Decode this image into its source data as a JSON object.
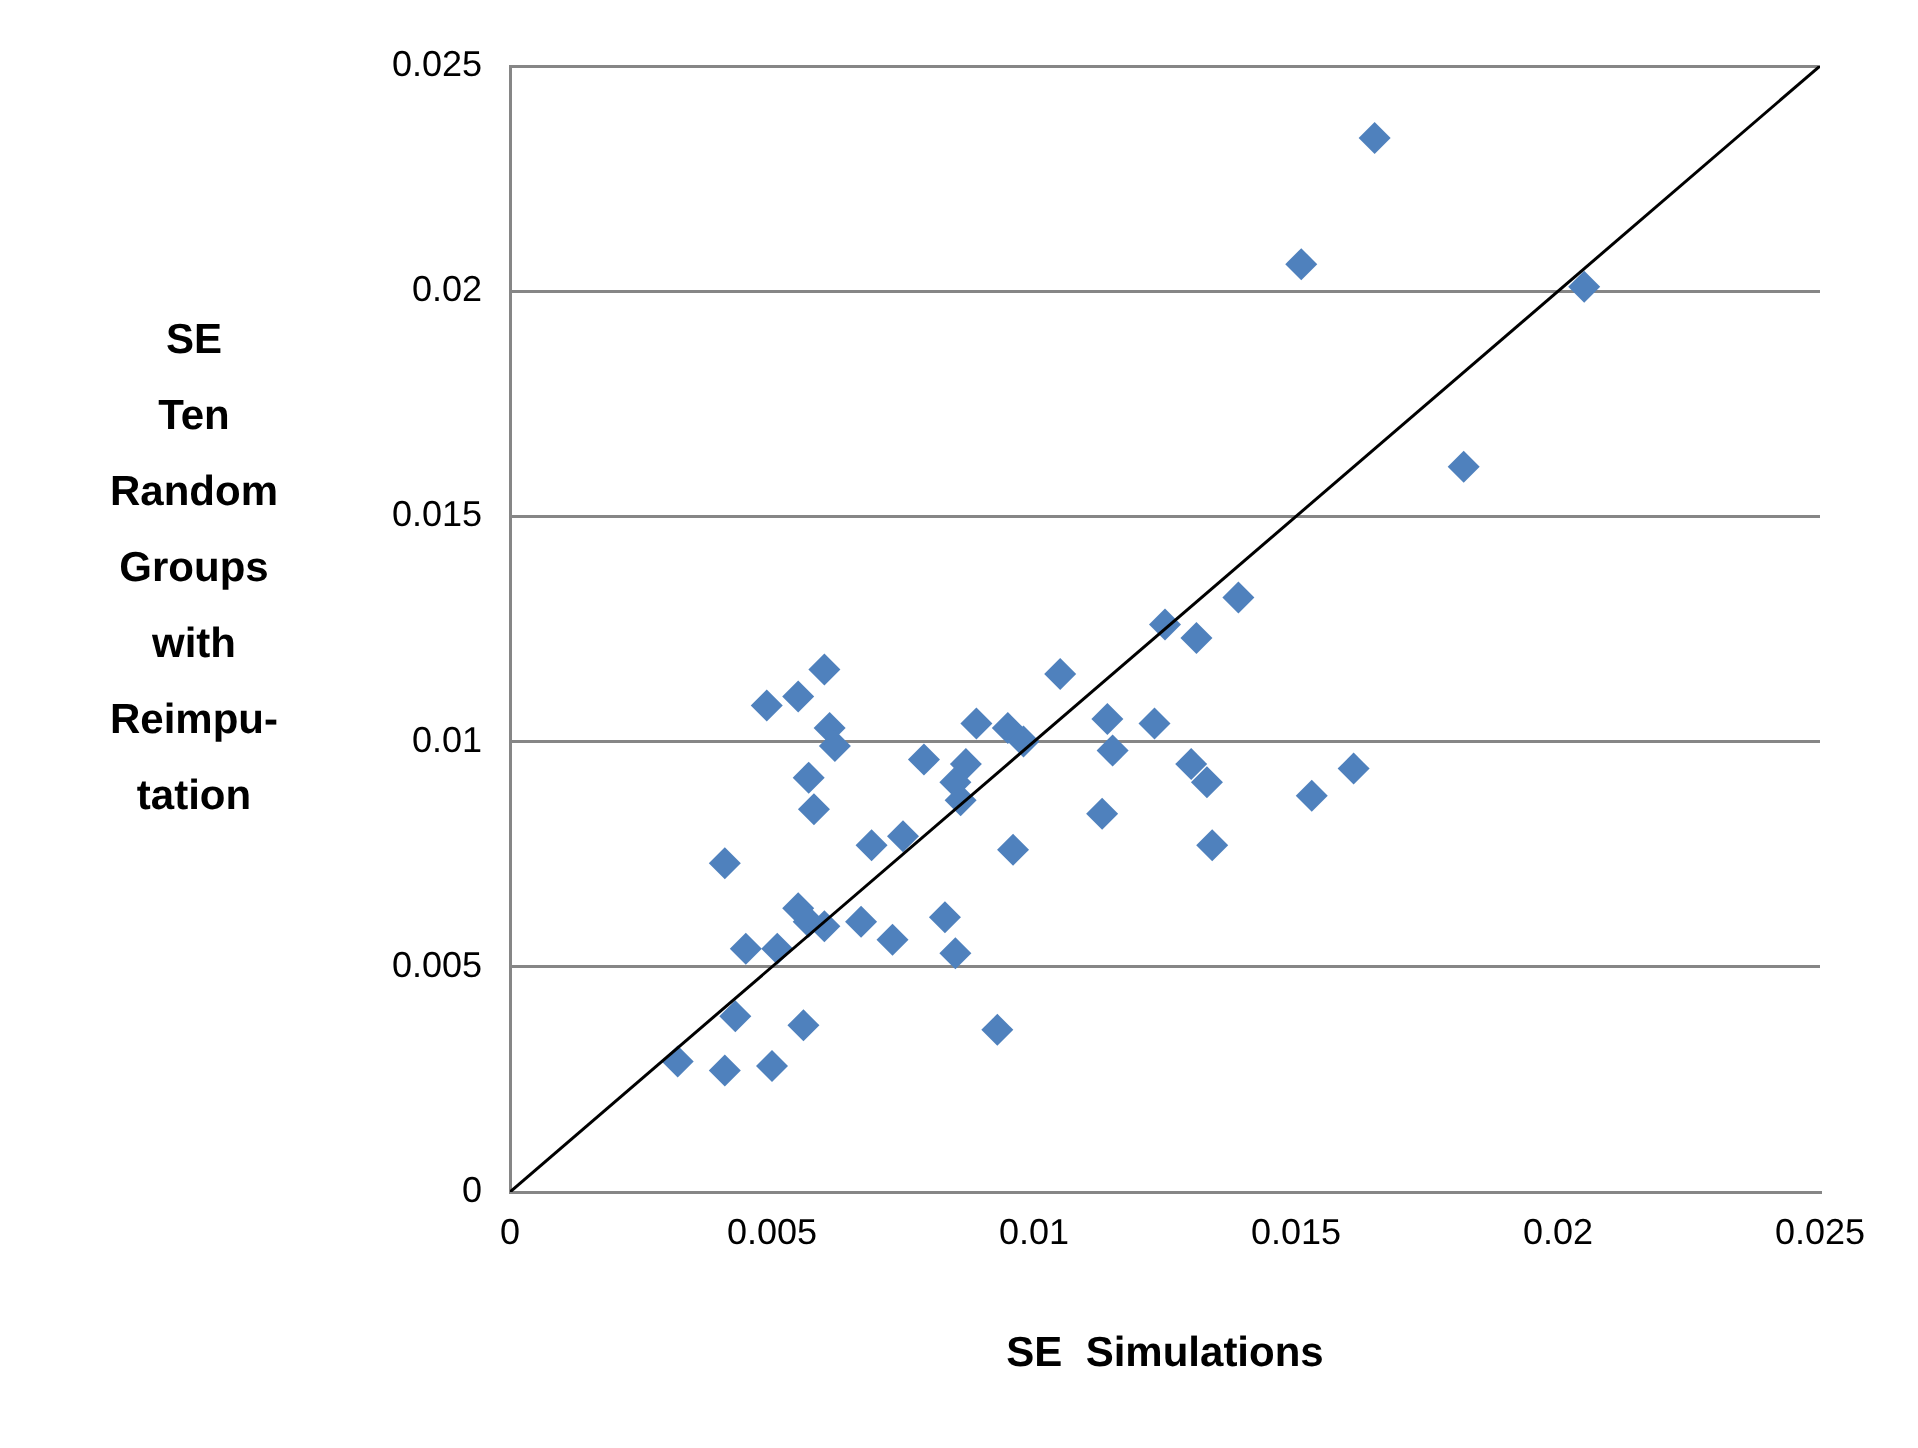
{
  "chart_data": {
    "type": "scatter",
    "xlabel": "SE  Simulations",
    "ylabel": "SE\nTen\nRandom\nGroups\nwith\nReimpu-\ntation",
    "xlim": [
      0,
      0.025
    ],
    "xticks": [
      0,
      0.005,
      0.01,
      0.015,
      0.02,
      0.025
    ],
    "ylim": [
      0,
      0.025
    ],
    "yticks": [
      0,
      0.005,
      0.01,
      0.015,
      0.02,
      0.025
    ],
    "grid": "y",
    "legend": false,
    "series": [
      {
        "marker": "diamond",
        "color": "#4f81bd",
        "x": [
          0.0032,
          0.0041,
          0.0043,
          0.005,
          0.0056,
          0.0041,
          0.0045,
          0.0051,
          0.0055,
          0.0057,
          0.006,
          0.0067,
          0.0073,
          0.0083,
          0.0085,
          0.0093,
          0.0069,
          0.0075,
          0.0057,
          0.0058,
          0.0049,
          0.0055,
          0.006,
          0.0061,
          0.0062,
          0.0079,
          0.0085,
          0.0086,
          0.0087,
          0.0089,
          0.0095,
          0.0098,
          0.0096,
          0.0105,
          0.0114,
          0.0115,
          0.0113,
          0.0123,
          0.0125,
          0.0131,
          0.0139,
          0.013,
          0.0133,
          0.0134,
          0.0153,
          0.0161,
          0.0151,
          0.0165,
          0.0182,
          0.0205
        ],
        "values": [
          0.0029,
          0.0027,
          0.0039,
          0.0028,
          0.0037,
          0.0073,
          0.0054,
          0.0054,
          0.0063,
          0.006,
          0.0059,
          0.006,
          0.0056,
          0.0061,
          0.0053,
          0.0036,
          0.0077,
          0.0079,
          0.0092,
          0.0085,
          0.0108,
          0.011,
          0.0116,
          0.0103,
          0.0099,
          0.0096,
          0.0091,
          0.0087,
          0.0095,
          0.0104,
          0.0103,
          0.01,
          0.0076,
          0.0115,
          0.0105,
          0.0098,
          0.0084,
          0.0104,
          0.0126,
          0.0123,
          0.0132,
          0.0095,
          0.0091,
          0.0077,
          0.0088,
          0.0094,
          0.0206,
          0.0234,
          0.0161,
          0.0201
        ]
      },
      {
        "type": "line",
        "marker": "none",
        "color": "#000000",
        "x": [
          0,
          0.025
        ],
        "values": [
          0,
          0.025
        ]
      }
    ]
  }
}
